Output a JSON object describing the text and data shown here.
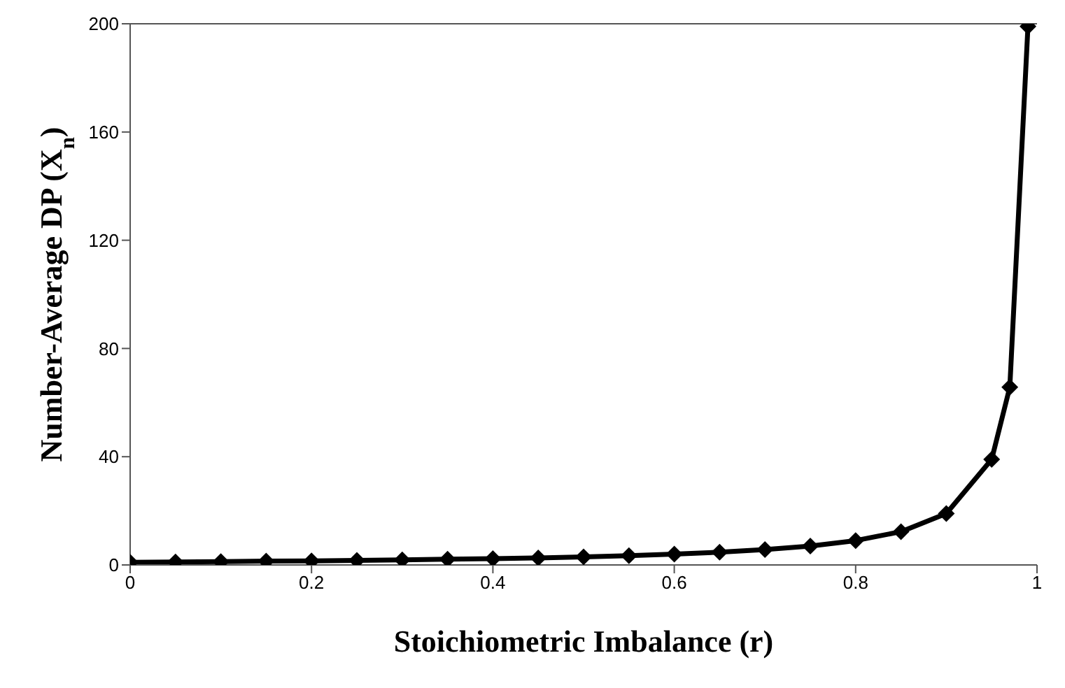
{
  "chart_data": {
    "type": "line",
    "xlabel": "Stoichiometric Imbalance (r)",
    "ylabel": "Number-Average DP (X$_{n}$)",
    "x": [
      0,
      0.05,
      0.1,
      0.15,
      0.2,
      0.25,
      0.3,
      0.35,
      0.4,
      0.45,
      0.5,
      0.55,
      0.6,
      0.65,
      0.7,
      0.75,
      0.8,
      0.85,
      0.9,
      0.95,
      0.97,
      0.99
    ],
    "series": [
      {
        "color": "#000000",
        "values": [
          1,
          1.1,
          1.2,
          1.4,
          1.5,
          1.7,
          1.9,
          2.1,
          2.3,
          2.6,
          3,
          3.4,
          4,
          4.7,
          5.7,
          7,
          9,
          12.3,
          19,
          39,
          65.7,
          199
        ]
      }
    ],
    "xlim": [
      0,
      1
    ],
    "xticks": [
      0,
      0.2,
      0.4,
      0.6,
      0.8,
      1
    ],
    "ylim": [
      0,
      200
    ],
    "yticks": [
      0,
      40,
      80,
      120,
      160,
      200
    ],
    "grid": false,
    "marker": "diamond",
    "line_style": "solid"
  }
}
